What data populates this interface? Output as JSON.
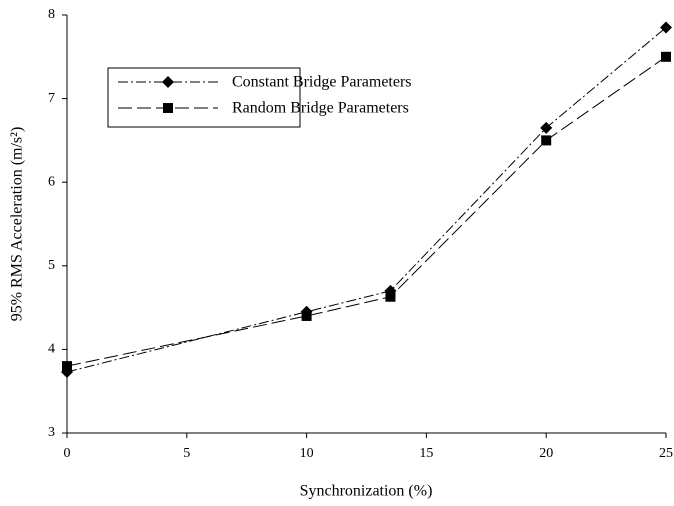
{
  "chart_data": {
    "type": "line",
    "x_label": "Synchronization (%)",
    "y_label": "95% RMS Acceleration (m/s²)",
    "x": [
      0,
      10,
      13.5,
      20,
      25
    ],
    "series": [
      {
        "name": "Constant Bridge Parameters",
        "color": "#000000",
        "marker": "diamond",
        "dash": "dashdot",
        "values": [
          3.73,
          4.45,
          4.7,
          6.65,
          7.85
        ]
      },
      {
        "name": "Random Bridge Parameters",
        "color": "#000000",
        "marker": "square",
        "dash": "longdash",
        "values": [
          3.8,
          4.4,
          4.63,
          6.5,
          7.5
        ]
      }
    ],
    "xlim": [
      0,
      25
    ],
    "xticks": [
      0,
      5,
      10,
      15,
      20,
      25
    ],
    "ylim": [
      3,
      8
    ],
    "yticks": [
      3,
      4,
      5,
      6,
      7,
      8
    ],
    "grid": false,
    "legend": "upper left"
  }
}
